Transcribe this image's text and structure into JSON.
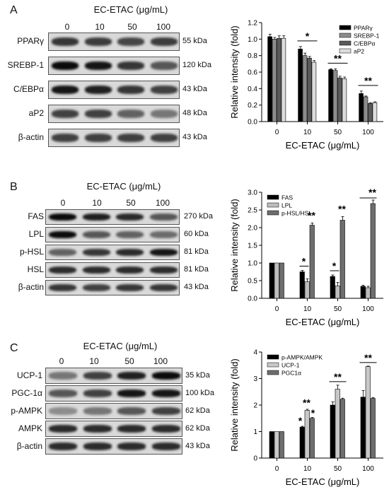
{
  "panels": [
    {
      "label": "A",
      "treatment": "EC-ETAC (μg/mL)",
      "concentrations": [
        "0",
        "10",
        "50",
        "100"
      ],
      "rows": [
        {
          "name": "PPARγ",
          "kda": "55 kDa",
          "bands": [
            0.75,
            0.72,
            0.68,
            0.72
          ]
        },
        {
          "name": "SREBP-1",
          "kda": "120 kDa",
          "bands": [
            0.95,
            0.9,
            0.75,
            0.6
          ]
        },
        {
          "name": "C/EBPα",
          "kda": "43 kDa",
          "bands": [
            0.9,
            0.85,
            0.75,
            0.7
          ]
        },
        {
          "name": "aP2",
          "kda": "48 kDa",
          "bands": [
            0.7,
            0.7,
            0.55,
            0.45
          ]
        },
        {
          "name": "β-actin",
          "kda": "43 kDa",
          "bands": [
            0.7,
            0.7,
            0.7,
            0.7
          ]
        }
      ]
    },
    {
      "label": "B",
      "treatment": "EC-ETAC (μg/mL)",
      "concentrations": [
        "0",
        "10",
        "50",
        "100"
      ],
      "rows": [
        {
          "name": "FAS",
          "kda": "270 kDa",
          "bands": [
            0.95,
            0.85,
            0.8,
            0.6
          ]
        },
        {
          "name": "LPL",
          "kda": "60 kDa",
          "bands": [
            0.95,
            0.6,
            0.55,
            0.5
          ]
        },
        {
          "name": "p-HSL",
          "kda": "81 kDa",
          "bands": [
            0.55,
            0.75,
            0.8,
            0.9
          ]
        },
        {
          "name": "HSL",
          "kda": "81 kDa",
          "bands": [
            0.8,
            0.8,
            0.8,
            0.8
          ]
        },
        {
          "name": "β-actin",
          "kda": "43 kDa",
          "bands": [
            0.75,
            0.7,
            0.75,
            0.75
          ]
        }
      ]
    },
    {
      "label": "C",
      "treatment": "EC-ETAC (μg/mL)",
      "concentrations": [
        "0",
        "10",
        "50",
        "100"
      ],
      "rows": [
        {
          "name": "UCP-1",
          "kda": "35 kDa",
          "bands": [
            0.45,
            0.7,
            0.85,
            0.95
          ]
        },
        {
          "name": "PGC-1α",
          "kda": "100 kDa",
          "bands": [
            0.6,
            0.7,
            0.9,
            0.9
          ]
        },
        {
          "name": "p-AMPK",
          "kda": "62 kDa",
          "bands": [
            0.35,
            0.45,
            0.6,
            0.7
          ]
        },
        {
          "name": "AMPK",
          "kda": "62 kDa",
          "bands": [
            0.8,
            0.8,
            0.8,
            0.8
          ]
        },
        {
          "name": "β-actin",
          "kda": "43 kDa",
          "bands": [
            0.8,
            0.8,
            0.8,
            0.8
          ]
        }
      ]
    }
  ],
  "chart_data": [
    {
      "type": "bar",
      "xlabel": "EC-ETAC (μg/mL)",
      "ylabel": "Relative intensity (fold)",
      "categories": [
        "0",
        "10",
        "50",
        "100"
      ],
      "ylim": [
        0,
        1.2
      ],
      "yticks": [
        "0.0",
        "0.2",
        "0.4",
        "0.6",
        "0.8",
        "1.0",
        "1.2"
      ],
      "legend_position": "top-right",
      "series": [
        {
          "name": "PPARγ",
          "color": "#000000",
          "values": [
            1.03,
            0.88,
            0.63,
            0.34
          ],
          "errors": [
            0.03,
            0.03,
            0.01,
            0.03
          ]
        },
        {
          "name": "SREBP-1",
          "color": "#8c8c8c",
          "values": [
            1.0,
            0.8,
            0.62,
            0.3
          ],
          "errors": [
            0.02,
            0.03,
            0.02,
            0.01
          ]
        },
        {
          "name": "C/EBPα",
          "color": "#5a5a5a",
          "values": [
            1.01,
            0.77,
            0.53,
            0.22
          ],
          "errors": [
            0.03,
            0.02,
            0.02,
            0.01
          ]
        },
        {
          "name": "aP2",
          "color": "#dcdcdc",
          "values": [
            1.01,
            0.72,
            0.52,
            0.23
          ],
          "errors": [
            0.03,
            0.02,
            0.02,
            0.01
          ]
        }
      ],
      "annotations": [
        "*",
        "**",
        "**"
      ]
    },
    {
      "type": "bar",
      "xlabel": "EC-ETAC (μg/mL)",
      "ylabel": "Relative intensity (fold)",
      "categories": [
        "0",
        "10",
        "50",
        "100"
      ],
      "ylim": [
        0,
        3.0
      ],
      "yticks": [
        "0.0",
        "0.5",
        "1.0",
        "1.5",
        "2.0",
        "2.5",
        "3.0"
      ],
      "legend_position": "top-left",
      "series": [
        {
          "name": "FAS",
          "color": "#000000",
          "values": [
            1.0,
            0.75,
            0.62,
            0.34
          ],
          "errors": [
            0.0,
            0.04,
            0.04,
            0.03
          ]
        },
        {
          "name": "LPL",
          "color": "#bdbdbd",
          "values": [
            1.0,
            0.47,
            0.35,
            0.3
          ],
          "errors": [
            0.0,
            0.08,
            0.1,
            0.04
          ]
        },
        {
          "name": "p-HSL/HSL",
          "color": "#6e6e6e",
          "values": [
            1.0,
            2.07,
            2.21,
            2.68
          ],
          "errors": [
            0.0,
            0.06,
            0.1,
            0.1
          ]
        }
      ],
      "annotations": [
        "*",
        "**",
        "*",
        "**",
        "**"
      ]
    },
    {
      "type": "bar",
      "xlabel": "EC-ETAC (μg/mL)",
      "ylabel": "Relative intensity (fold)",
      "categories": [
        "0",
        "10",
        "50",
        "100"
      ],
      "ylim": [
        0,
        4
      ],
      "yticks": [
        "0",
        "1",
        "2",
        "3",
        "4"
      ],
      "legend_position": "top-left",
      "series": [
        {
          "name": "p-AMPK/AMPK",
          "color": "#000000",
          "values": [
            1.0,
            1.17,
            2.0,
            2.3
          ],
          "errors": [
            0.0,
            0.03,
            0.12,
            0.25
          ]
        },
        {
          "name": "UCP-1",
          "color": "#c8c8c8",
          "values": [
            1.0,
            1.8,
            2.6,
            3.45
          ],
          "errors": [
            0.0,
            0.04,
            0.15,
            0.02
          ]
        },
        {
          "name": "PGC1α",
          "color": "#6e6e6e",
          "values": [
            1.0,
            1.5,
            2.22,
            2.25
          ],
          "errors": [
            0.0,
            0.03,
            0.04,
            0.03
          ]
        }
      ],
      "annotations": [
        "*",
        "**",
        "*",
        "**",
        "**"
      ]
    }
  ]
}
